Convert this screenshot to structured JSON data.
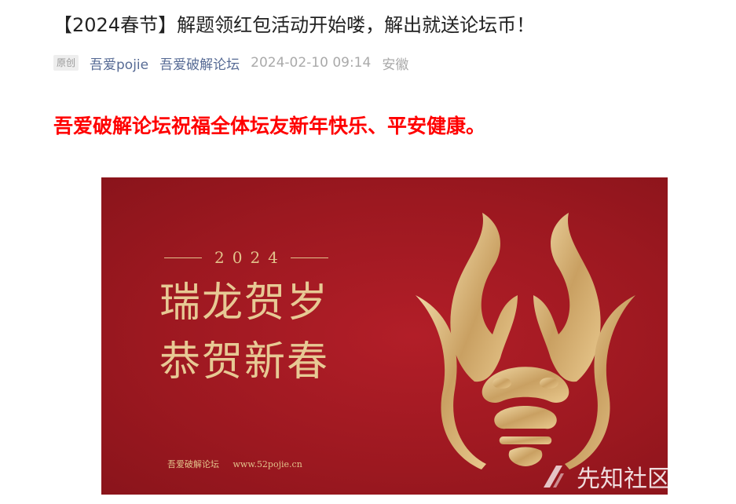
{
  "article": {
    "title": "【2024春节】解题领红包活动开始喽，解出就送论坛币！",
    "badge": "原创",
    "author": "吾爱pojie",
    "account": "吾爱破解论坛",
    "datetime": "2024-02-10 09:14",
    "location": "安徽",
    "greeting": "吾爱破解论坛祝福全体坛友新年快乐、平安健康。"
  },
  "banner": {
    "year": "2024",
    "line1": "瑞龙贺岁",
    "line2": "恭贺新春",
    "footer_name": "吾爱破解论坛",
    "footer_url": "www.52pojie.cn",
    "image": "golden-dragon-head"
  },
  "watermark": {
    "text": "先知社区"
  },
  "colors": {
    "accent_red": "#ff0000",
    "link": "#576b95",
    "banner_red": "#9c1820",
    "gold": "#e2c28b"
  }
}
